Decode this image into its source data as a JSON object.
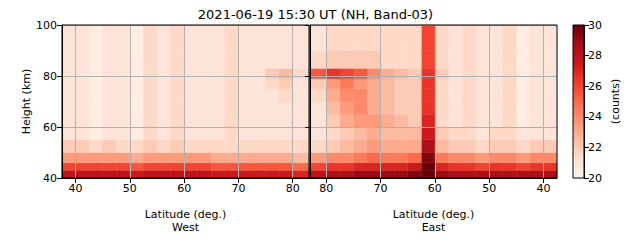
{
  "chart_data": {
    "type": "heatmap",
    "title": "2021-06-19 15:30 UT (NH, Band-03)",
    "xlabel": "Latitude (deg.)",
    "ylabel": "Height (km)",
    "grid": true,
    "ylim": [
      40,
      100
    ],
    "yticks": [
      40,
      60,
      80,
      100
    ],
    "lat_edges": [
      37.5,
      40,
      42.5,
      45,
      47.5,
      50,
      52.5,
      55,
      57.5,
      60,
      62.5,
      65,
      67.5,
      70,
      72.5,
      75,
      77.5,
      80,
      83
    ],
    "height_edges": [
      40,
      43,
      46,
      50,
      55,
      60,
      65,
      70,
      75,
      79,
      83,
      90,
      100
    ],
    "panels": [
      {
        "name": "West",
        "xlim": [
          37.5,
          83
        ],
        "xticks": [
          40,
          50,
          60,
          70,
          80
        ],
        "values": [
          [
            28,
            28,
            28,
            28,
            28,
            27.5,
            28,
            28,
            28,
            28,
            28,
            27.5,
            27.5,
            27.5,
            27.5,
            27.5,
            27.5,
            27
          ],
          [
            26,
            26,
            26,
            26,
            26,
            25.5,
            26,
            26,
            26,
            26,
            26,
            25.5,
            25.5,
            25.5,
            25.5,
            25.5,
            25.5,
            25
          ],
          [
            23.5,
            23.5,
            23.5,
            23.5,
            23.5,
            23,
            23.5,
            23.5,
            23.5,
            23.5,
            23.5,
            23,
            23,
            23,
            23,
            23,
            23,
            22.5
          ],
          [
            22,
            22,
            21.5,
            22,
            21.5,
            21.5,
            22,
            21.5,
            22,
            21.5,
            21.5,
            21.5,
            21.5,
            21.5,
            21.5,
            21.5,
            21.5,
            21.5
          ],
          [
            21,
            21,
            20.5,
            21,
            21,
            20.5,
            21.5,
            21,
            21.5,
            21,
            21,
            21,
            21.5,
            21,
            21,
            21,
            21,
            21
          ],
          [
            21,
            21,
            20.5,
            21,
            21,
            20.5,
            21.5,
            21,
            21.5,
            21,
            21,
            21,
            21.5,
            21,
            21,
            21,
            21,
            21
          ],
          [
            21,
            21,
            20.5,
            21,
            21,
            20.5,
            21.5,
            21,
            21.5,
            21,
            21,
            21,
            21.5,
            21,
            21,
            21,
            21,
            21
          ],
          [
            21,
            21,
            20.5,
            21,
            21,
            20.5,
            21.5,
            21,
            21.5,
            21,
            21,
            21,
            21.5,
            21,
            21,
            21,
            21.5,
            21
          ],
          [
            21,
            21,
            20.5,
            21,
            21,
            20.5,
            21.5,
            21,
            21.5,
            21,
            21,
            21,
            21.5,
            21,
            21,
            21.5,
            22,
            21
          ],
          [
            21,
            21,
            20.5,
            21,
            21,
            20.5,
            21.5,
            21,
            21.5,
            21,
            21,
            21,
            21.5,
            21,
            21,
            22,
            22.5,
            21.5
          ],
          [
            21,
            21,
            20.5,
            21,
            21,
            20.5,
            21.5,
            21,
            21.5,
            21,
            21,
            21,
            21.5,
            21,
            21,
            21,
            21,
            21
          ],
          [
            21,
            21,
            20.5,
            21,
            21,
            20.5,
            21.5,
            21,
            21.5,
            21,
            21,
            21,
            21.5,
            21,
            21,
            21,
            21,
            21
          ]
        ]
      },
      {
        "name": "East",
        "xlim": [
          83,
          37.5
        ],
        "xticks": [
          40,
          50,
          60,
          70,
          80
        ],
        "tick_labels": "x",
        "values": [
          [
            28.5,
            28.5,
            28.5,
            28.5,
            28.5,
            28.5,
            28.5,
            28.5,
            29,
            30,
            29.5,
            29,
            29,
            29,
            29,
            28.5,
            28.5,
            28
          ],
          [
            26.5,
            26.5,
            26,
            26.5,
            26.5,
            26,
            26.5,
            26.5,
            27,
            30,
            27.5,
            27,
            27,
            27,
            27,
            26.5,
            26.5,
            26
          ],
          [
            24,
            24,
            23.5,
            24,
            24,
            23.5,
            24,
            24,
            24.5,
            29.5,
            25,
            24.5,
            24.5,
            25,
            24.5,
            24,
            24,
            23.5
          ],
          [
            22,
            22,
            21.5,
            22,
            22,
            21.5,
            22,
            22,
            22.5,
            28.5,
            23,
            23,
            23,
            23.5,
            23,
            22.5,
            22,
            21.5
          ],
          [
            21,
            21,
            21,
            21.5,
            21.5,
            21,
            21.5,
            21.5,
            22,
            27.5,
            22.5,
            22.5,
            22.5,
            23,
            22.5,
            22,
            21.5,
            21
          ],
          [
            21,
            21,
            20.5,
            21.5,
            21,
            21,
            21.5,
            21,
            21.5,
            27,
            22,
            22.5,
            23,
            23.5,
            23.5,
            23,
            22,
            21
          ],
          [
            21,
            21,
            20.5,
            21.5,
            21,
            21,
            21.5,
            21,
            21.5,
            26.5,
            22,
            22,
            22.5,
            23,
            24,
            23.5,
            22.5,
            21
          ],
          [
            21,
            21,
            20.5,
            21.5,
            21,
            21,
            21.5,
            21,
            21.5,
            26.5,
            22,
            22,
            22.5,
            23,
            24,
            24,
            23,
            21.5
          ],
          [
            21,
            21,
            20.5,
            21.5,
            21,
            21,
            21.5,
            21,
            21.5,
            26.5,
            22,
            22,
            22.5,
            23,
            23.5,
            24.5,
            23.5,
            22
          ],
          [
            21,
            21,
            20.5,
            21.5,
            21,
            21,
            21.5,
            21,
            22,
            26.5,
            22,
            22.5,
            23,
            24,
            25.5,
            26,
            26.5,
            25.5
          ],
          [
            21,
            21,
            20.5,
            21.5,
            21,
            21,
            21.5,
            21,
            21.5,
            26,
            21.5,
            21.5,
            21.5,
            22,
            22,
            22,
            22,
            21.5
          ],
          [
            21,
            21,
            20.5,
            21.5,
            21,
            21,
            21.5,
            21,
            21.5,
            26,
            21.5,
            21.5,
            21.5,
            21.5,
            21.5,
            21.5,
            21.5,
            21
          ]
        ]
      }
    ],
    "colorbar": {
      "range": [
        20,
        30
      ],
      "ticks": [
        20,
        22,
        24,
        26,
        28,
        30
      ],
      "label": "(counts)",
      "colors": [
        "#fff5f0",
        "#fee0d2",
        "#fcbba1",
        "#fc9272",
        "#fb6a4a",
        "#ef3b2c",
        "#cb181d",
        "#a50f15",
        "#67000d"
      ]
    }
  }
}
